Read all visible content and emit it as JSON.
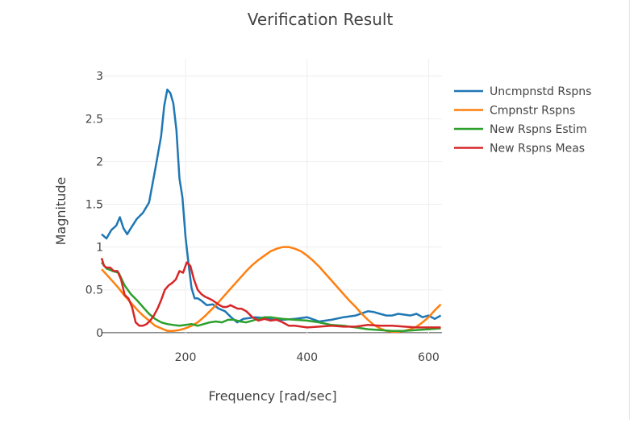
{
  "chart_data": {
    "type": "line",
    "title": "Verification Result",
    "xlabel": "Frequency [rad/sec]",
    "ylabel": "Magnitude",
    "xlim": [
      62,
      622
    ],
    "ylim": [
      -0.03,
      3.2
    ],
    "xticks": [
      200,
      400,
      600
    ],
    "yticks": [
      0,
      0.5,
      1,
      1.5,
      2,
      2.5,
      3
    ],
    "grid": true,
    "legend_position": "top-right",
    "series": [
      {
        "name": "Uncmpnstd Rspns",
        "color": "#1f77b4",
        "x": [
          62,
          70,
          78,
          86,
          92,
          98,
          104,
          110,
          120,
          130,
          140,
          150,
          160,
          165,
          170,
          175,
          180,
          185,
          190,
          195,
          200,
          205,
          210,
          215,
          220,
          225,
          230,
          235,
          245,
          255,
          265,
          275,
          285,
          295,
          305,
          315,
          330,
          345,
          360,
          380,
          400,
          420,
          440,
          460,
          480,
          500,
          510,
          520,
          525,
          530,
          540,
          550,
          560,
          570,
          580,
          590,
          600,
          610,
          620
        ],
        "y": [
          1.15,
          1.1,
          1.2,
          1.25,
          1.35,
          1.22,
          1.15,
          1.22,
          1.33,
          1.4,
          1.52,
          1.9,
          2.3,
          2.65,
          2.84,
          2.8,
          2.68,
          2.37,
          1.8,
          1.58,
          1.12,
          0.8,
          0.52,
          0.4,
          0.4,
          0.38,
          0.35,
          0.32,
          0.33,
          0.28,
          0.25,
          0.18,
          0.12,
          0.16,
          0.17,
          0.18,
          0.17,
          0.15,
          0.15,
          0.16,
          0.18,
          0.13,
          0.15,
          0.18,
          0.2,
          0.25,
          0.24,
          0.22,
          0.21,
          0.2,
          0.2,
          0.22,
          0.21,
          0.2,
          0.22,
          0.18,
          0.2,
          0.16,
          0.2
        ]
      },
      {
        "name": "Cmpnstr Rspns",
        "color": "#ff7f0e",
        "x": [
          62,
          70,
          80,
          90,
          100,
          110,
          120,
          130,
          140,
          150,
          160,
          170,
          180,
          190,
          200,
          210,
          220,
          230,
          240,
          250,
          260,
          270,
          280,
          290,
          300,
          310,
          320,
          330,
          340,
          350,
          360,
          370,
          380,
          390,
          400,
          410,
          420,
          430,
          440,
          450,
          460,
          470,
          480,
          490,
          500,
          510,
          520,
          530,
          540,
          550,
          560,
          570,
          580,
          590,
          600,
          610,
          620
        ],
        "y": [
          0.74,
          0.68,
          0.6,
          0.52,
          0.43,
          0.35,
          0.27,
          0.2,
          0.14,
          0.08,
          0.05,
          0.02,
          0.02,
          0.03,
          0.05,
          0.08,
          0.12,
          0.18,
          0.25,
          0.32,
          0.4,
          0.48,
          0.56,
          0.64,
          0.72,
          0.79,
          0.85,
          0.9,
          0.95,
          0.98,
          1.0,
          1.0,
          0.98,
          0.95,
          0.9,
          0.84,
          0.77,
          0.69,
          0.61,
          0.53,
          0.45,
          0.37,
          0.3,
          0.22,
          0.15,
          0.09,
          0.05,
          0.02,
          0.01,
          0.01,
          0.02,
          0.04,
          0.07,
          0.12,
          0.18,
          0.26,
          0.33
        ]
      },
      {
        "name": "New Rspns Estim",
        "color": "#2ca02c",
        "x": [
          62,
          70,
          80,
          90,
          100,
          110,
          120,
          130,
          140,
          150,
          160,
          170,
          180,
          190,
          200,
          210,
          220,
          230,
          240,
          250,
          260,
          270,
          280,
          290,
          300,
          310,
          320,
          330,
          340,
          350,
          360,
          380,
          400,
          420,
          440,
          460,
          480,
          500,
          520,
          540,
          560,
          580,
          600,
          620
        ],
        "y": [
          0.82,
          0.75,
          0.72,
          0.7,
          0.55,
          0.45,
          0.38,
          0.3,
          0.22,
          0.16,
          0.12,
          0.1,
          0.09,
          0.08,
          0.09,
          0.1,
          0.08,
          0.1,
          0.12,
          0.13,
          0.12,
          0.15,
          0.15,
          0.13,
          0.12,
          0.14,
          0.16,
          0.18,
          0.18,
          0.17,
          0.16,
          0.15,
          0.14,
          0.12,
          0.09,
          0.08,
          0.06,
          0.04,
          0.03,
          0.02,
          0.02,
          0.03,
          0.04,
          0.05
        ]
      },
      {
        "name": "New Rspns Meas",
        "color": "#d62728",
        "x": [
          62,
          66,
          70,
          76,
          82,
          88,
          94,
          100,
          106,
          112,
          118,
          124,
          130,
          136,
          142,
          148,
          154,
          160,
          166,
          172,
          178,
          184,
          190,
          196,
          202,
          208,
          214,
          220,
          226,
          232,
          238,
          244,
          250,
          256,
          262,
          268,
          274,
          280,
          286,
          292,
          300,
          310,
          320,
          330,
          340,
          350,
          360,
          370,
          380,
          400,
          420,
          440,
          460,
          480,
          500,
          520,
          540,
          560,
          580,
          600,
          620
        ],
        "y": [
          0.87,
          0.78,
          0.76,
          0.76,
          0.72,
          0.72,
          0.62,
          0.44,
          0.4,
          0.3,
          0.12,
          0.08,
          0.08,
          0.1,
          0.14,
          0.2,
          0.28,
          0.38,
          0.5,
          0.55,
          0.58,
          0.62,
          0.72,
          0.7,
          0.82,
          0.78,
          0.62,
          0.5,
          0.45,
          0.42,
          0.4,
          0.38,
          0.35,
          0.32,
          0.3,
          0.3,
          0.32,
          0.3,
          0.28,
          0.28,
          0.25,
          0.18,
          0.14,
          0.16,
          0.14,
          0.15,
          0.12,
          0.08,
          0.08,
          0.06,
          0.07,
          0.08,
          0.07,
          0.07,
          0.09,
          0.08,
          0.08,
          0.07,
          0.06,
          0.06,
          0.06
        ]
      }
    ]
  }
}
